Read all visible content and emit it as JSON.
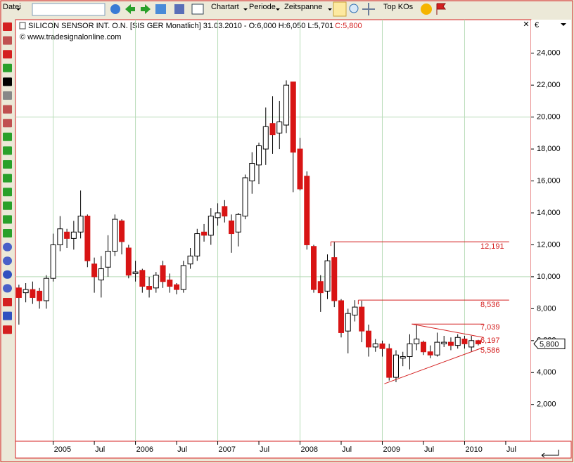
{
  "toolbar": {
    "file_menu": "Datei",
    "chart_type": "Chartart",
    "period": "Periode",
    "timespan": "Zeitspanne",
    "top_kos": "Top KOs"
  },
  "chart_data": {
    "type": "candlestick",
    "title": "SILICON SENSOR INT. O.N. [SIS GER  Monatlich] 31.03.2010 - O:6,000 H:6,050 L:5,701",
    "close_label": "C:5,800",
    "source": "© www.tradesignalonline.com",
    "currency": "€",
    "open": [
      9300,
      9000,
      9200,
      9100,
      8500,
      9900,
      12000,
      12800,
      12400,
      12800,
      13800,
      10800,
      9800,
      10600,
      11600,
      13500,
      11800,
      10200,
      10400,
      9400,
      9300,
      10700,
      9800,
      9500,
      9200,
      10800,
      11300,
      12800,
      12600,
      13700,
      14400,
      13500,
      12800,
      13800,
      16000,
      17000,
      18000,
      19600,
      19000,
      19500,
      22200,
      18000,
      16300,
      11900,
      9700,
      9100,
      11200,
      8500,
      6600,
      7600,
      8100,
      6600,
      5600,
      5800,
      5500,
      3700,
      4900,
      5000,
      5800,
      5900,
      5300,
      5100,
      5800,
      5900,
      5700,
      6100,
      5600,
      6000
    ],
    "high": [
      9500,
      9600,
      9700,
      9300,
      10100,
      12700,
      13800,
      13000,
      13500,
      15400,
      13900,
      11200,
      11300,
      12600,
      13900,
      13600,
      12000,
      11000,
      10500,
      10000,
      10300,
      11000,
      10200,
      9600,
      11000,
      11800,
      13000,
      13300,
      14300,
      14600,
      14800,
      13900,
      14000,
      16400,
      17800,
      18400,
      20600,
      21300,
      21000,
      22300,
      22200,
      18700,
      16600,
      12000,
      10100,
      11400,
      12191,
      8600,
      8000,
      8536,
      8500,
      7000,
      6100,
      6000,
      5800,
      5400,
      5300,
      6400,
      7000,
      6000,
      5700,
      6500,
      6300,
      6200,
      6400,
      6300,
      6300,
      6050
    ],
    "low": [
      7000,
      8400,
      8300,
      8000,
      8000,
      9700,
      11600,
      11800,
      11700,
      12400,
      10600,
      9000,
      8700,
      10000,
      11300,
      11400,
      9900,
      9700,
      9000,
      8700,
      9000,
      9300,
      9000,
      8900,
      9000,
      10500,
      11000,
      12200,
      12000,
      13200,
      13400,
      11500,
      11900,
      13600,
      15200,
      15800,
      17000,
      17700,
      18000,
      19000,
      15300,
      15400,
      11700,
      9000,
      7800,
      8600,
      8100,
      6200,
      5200,
      7200,
      5900,
      5000,
      5300,
      5000,
      3500,
      3400,
      4400,
      4200,
      5400,
      5100,
      4900,
      5000,
      5600,
      5400,
      5500,
      5500,
      5300,
      5701
    ],
    "close": [
      8700,
      9200,
      8700,
      8500,
      9900,
      12000,
      13000,
      12400,
      12800,
      13800,
      11000,
      10000,
      10500,
      11600,
      13600,
      12200,
      10100,
      10300,
      9400,
      9200,
      10100,
      9700,
      9400,
      9200,
      10700,
      11300,
      12700,
      12600,
      13800,
      14000,
      13800,
      12700,
      13900,
      16200,
      17100,
      18200,
      19400,
      18900,
      19700,
      22000,
      17800,
      15500,
      12000,
      9200,
      9000,
      11000,
      8500,
      6500,
      7700,
      8100,
      6600,
      5600,
      5800,
      5500,
      3700,
      5100,
      5000,
      5800,
      6100,
      5300,
      5100,
      5900,
      5900,
      5700,
      6200,
      5800,
      6000,
      5800
    ],
    "up_color": "#ffffff",
    "down_color": "#d81414",
    "line_color": "#d42020",
    "ylim": [
      -300,
      26100
    ],
    "yticks": [
      {
        "value": 2000,
        "label": "2,000"
      },
      {
        "value": 4000,
        "label": "4,000"
      },
      {
        "value": 6000,
        "label": "6,000"
      },
      {
        "value": 8000,
        "label": "8,000"
      },
      {
        "value": 10000,
        "label": "10,000"
      },
      {
        "value": 12000,
        "label": "12,000"
      },
      {
        "value": 14000,
        "label": "14,000"
      },
      {
        "value": 16000,
        "label": "16,000"
      },
      {
        "value": 18000,
        "label": "18,000"
      },
      {
        "value": 20000,
        "label": "20,000"
      },
      {
        "value": 22000,
        "label": "22,000"
      },
      {
        "value": 24000,
        "label": "24,000"
      }
    ],
    "ygrid": [
      10000,
      20000
    ],
    "xlim": [
      -0.5,
      74.7
    ],
    "xticks": [
      {
        "value": 5,
        "label": "2005"
      },
      {
        "value": 11,
        "label": "Jul"
      },
      {
        "value": 17,
        "label": "2006"
      },
      {
        "value": 23,
        "label": "Jul"
      },
      {
        "value": 29,
        "label": "2007"
      },
      {
        "value": 35,
        "label": "Jul"
      },
      {
        "value": 41,
        "label": "2008"
      },
      {
        "value": 47,
        "label": "Jul"
      },
      {
        "value": 53,
        "label": "2009"
      },
      {
        "value": 59,
        "label": "Jul"
      },
      {
        "value": 65,
        "label": "2010"
      },
      {
        "value": 71,
        "label": "Jul"
      }
    ],
    "xgrid": [
      5,
      17,
      29,
      41,
      53,
      65
    ],
    "last_price": {
      "value": 5800,
      "label": "5,800"
    },
    "hlines": [
      {
        "value": 12191,
        "label": "12,191",
        "from": 45.5,
        "to": 71.5
      },
      {
        "value": 8536,
        "label": "8,536",
        "from": 49.5,
        "to": 71.5
      }
    ],
    "trendlines": [
      {
        "x": [
          57.3,
          67.8
        ],
        "y": [
          7039,
          6197
        ]
      },
      {
        "x": [
          53.3,
          67.8
        ],
        "y": [
          3300,
          5586
        ]
      }
    ],
    "level_labels": [
      {
        "value": 7039,
        "label": "7,039"
      },
      {
        "value": 6197,
        "label": "6,197"
      },
      {
        "value": 5586,
        "label": "5,586"
      }
    ]
  }
}
